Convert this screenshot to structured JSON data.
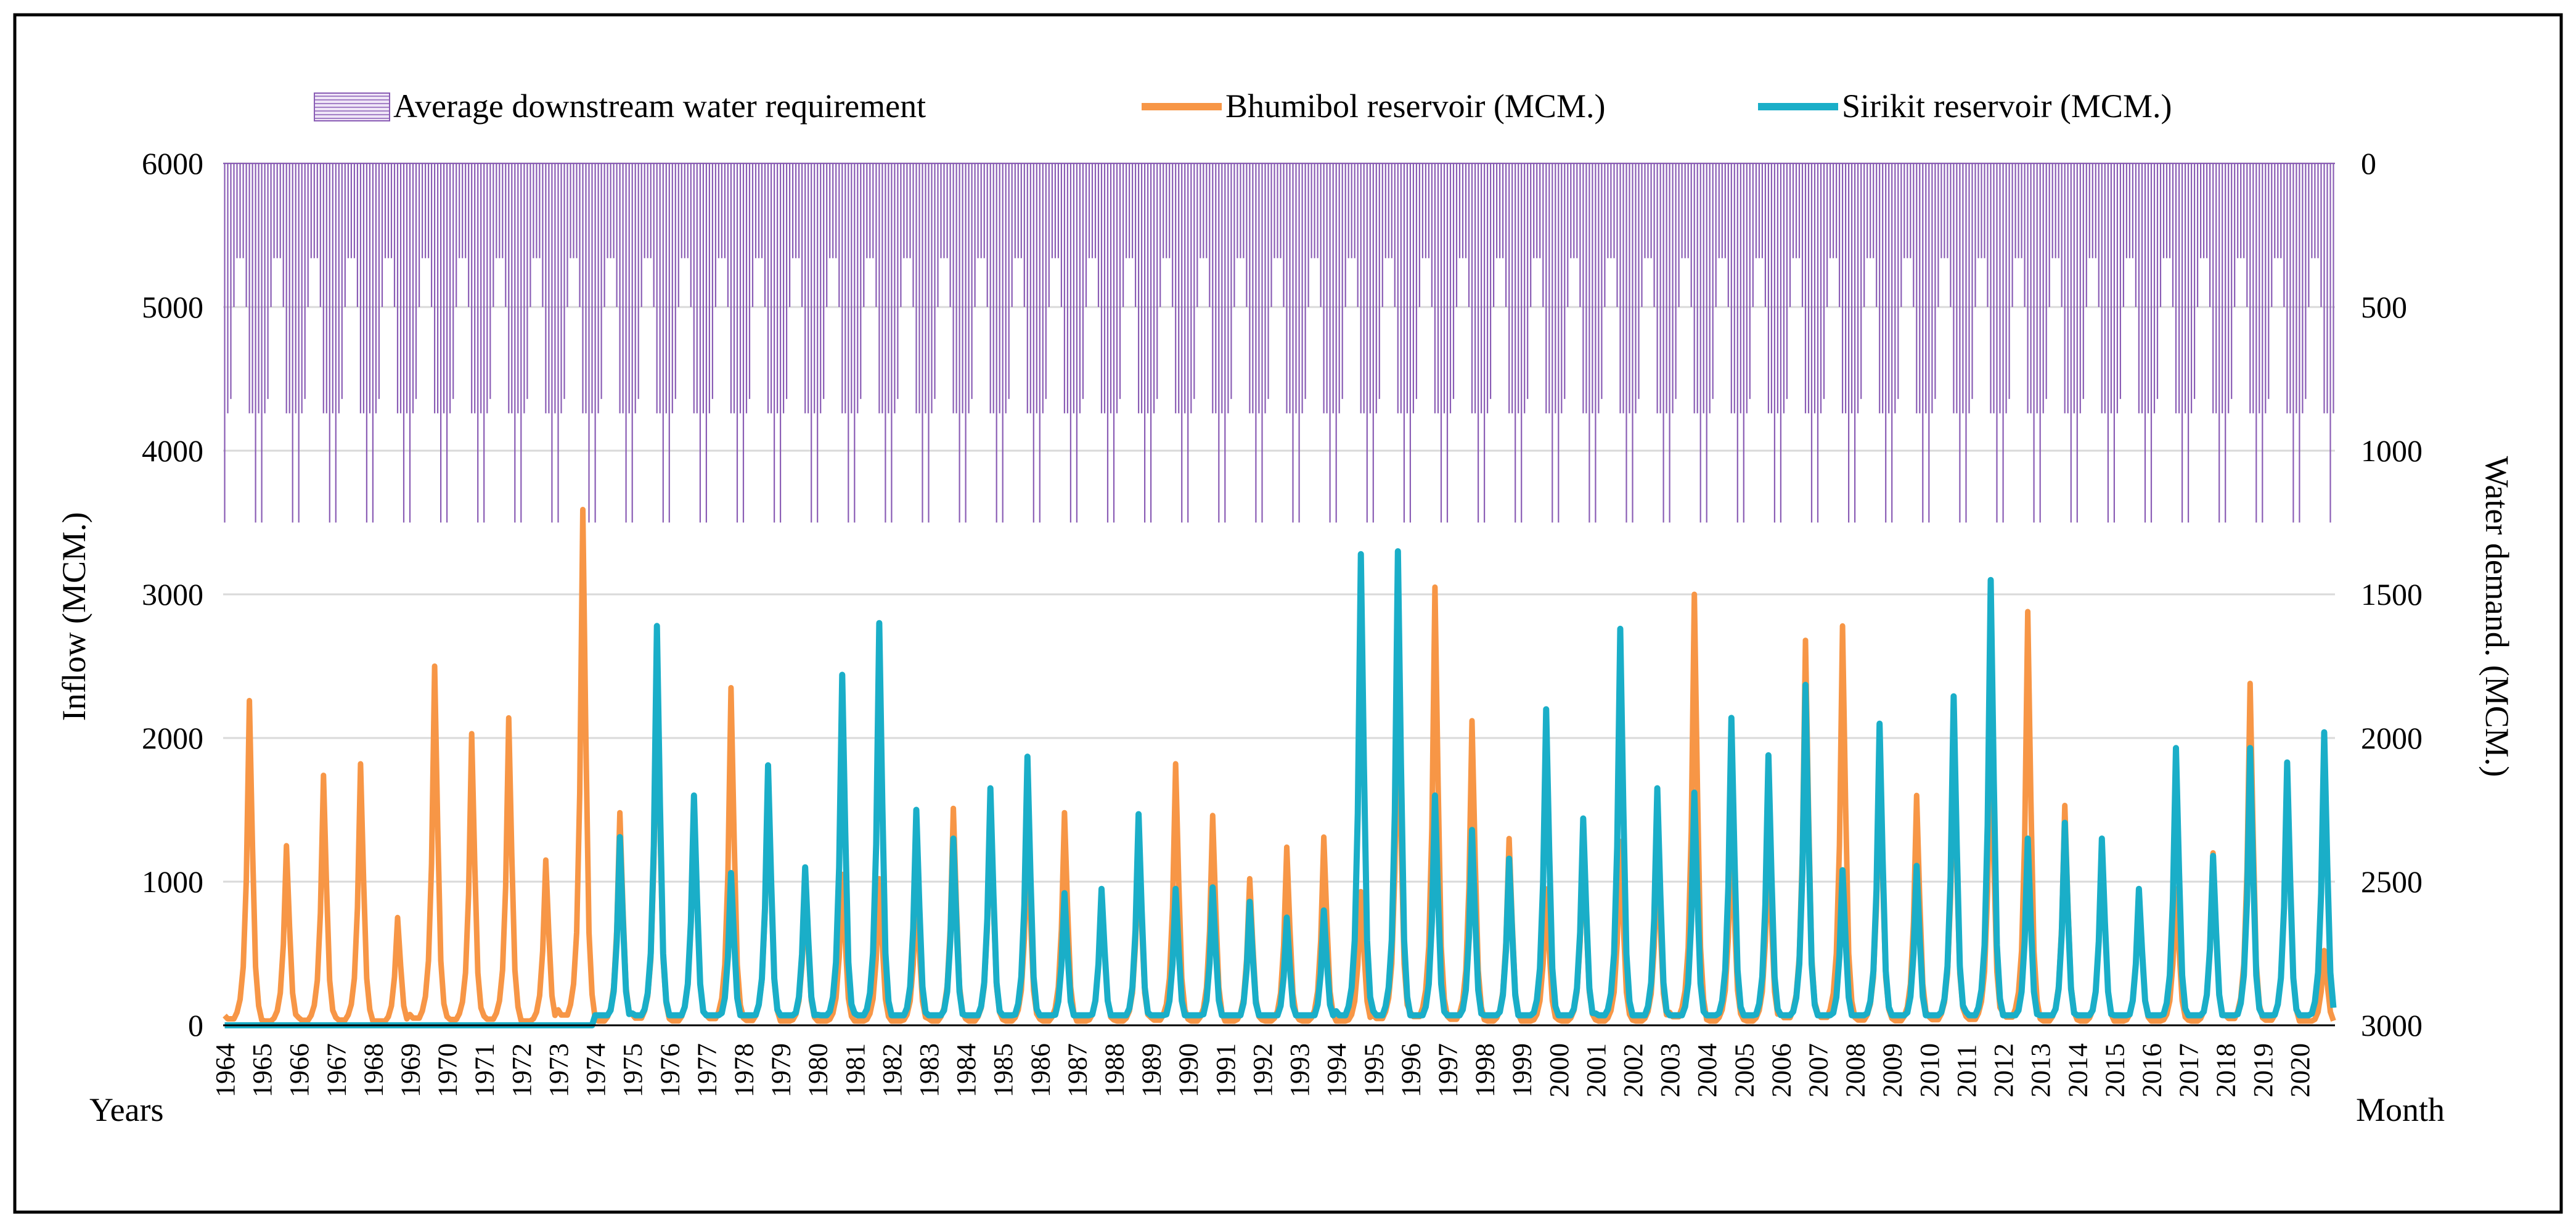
{
  "chart_data": {
    "type": "line",
    "legend": {
      "placement": "top",
      "items": [
        {
          "label": "Average downstream water requirement",
          "kind": "bar"
        },
        {
          "label": "Bhumibol reservoir (MCM.)",
          "kind": "line"
        },
        {
          "label": "Sirikit reservoir (MCM.)",
          "kind": "line"
        }
      ]
    },
    "ylabel_left": "Inflow (MCM.)",
    "ylabel_right": "Water demand. (MCM.)",
    "xlabel_left": "Years",
    "xlabel_right": "Month",
    "ylim_left": [
      0,
      6000
    ],
    "yticks_left": [
      "0",
      "1000",
      "2000",
      "3000",
      "4000",
      "5000",
      "6000"
    ],
    "ylim_right": [
      3000,
      0
    ],
    "yticks_right": [
      "3000",
      "2500",
      "2000",
      "1500",
      "1000",
      "500",
      "0"
    ],
    "grid": true,
    "years": [
      "1964",
      "1965",
      "1966",
      "1967",
      "1968",
      "1969",
      "1970",
      "1971",
      "1972",
      "1973",
      "1974",
      "1975",
      "1976",
      "1977",
      "1978",
      "1979",
      "1980",
      "1981",
      "1982",
      "1983",
      "1984",
      "1985",
      "1986",
      "1987",
      "1988",
      "1989",
      "1990",
      "1991",
      "1992",
      "1993",
      "1994",
      "1995",
      "1996",
      "1997",
      "1998",
      "1999",
      "2000",
      "2001",
      "2002",
      "2003",
      "2004",
      "2005",
      "2006",
      "2007",
      "2008",
      "2009",
      "2010",
      "2011",
      "2012",
      "2013",
      "2014",
      "2015",
      "2016",
      "2017",
      "2018",
      "2019",
      "2020"
    ],
    "water_demand_monthly_pattern": [
      1250,
      870,
      820,
      500,
      330,
      330,
      330,
      500,
      870,
      870,
      1250,
      870
    ],
    "series": [
      {
        "name": "Bhumibol reservoir (MCM.)",
        "color": "#f79646",
        "annual_peaks": [
          2260,
          1250,
          1740,
          1820,
          750,
          2500,
          2030,
          2140,
          1150,
          3590,
          1480,
          2520,
          1550,
          2350,
          1700,
          950,
          1050,
          1020,
          940,
          1510,
          1500,
          1340,
          1480,
          950,
          1250,
          1820,
          1460,
          1020,
          1240,
          1310,
          930,
          2380,
          3050,
          2120,
          1300,
          950,
          1290,
          1280,
          1220,
          3000,
          1350,
          1300,
          2680,
          2780,
          1850,
          1600,
          2000,
          2080,
          2880,
          1530,
          1300,
          950,
          950,
          1200,
          2380,
          1800,
          520
        ]
      },
      {
        "name": "Sirikit reservoir (MCM.)",
        "color": "#1aaec8",
        "annual_peaks": [
          0,
          0,
          0,
          0,
          0,
          0,
          0,
          0,
          0,
          0,
          1310,
          2780,
          1600,
          1060,
          1810,
          1100,
          2440,
          2800,
          1500,
          1300,
          1650,
          1870,
          920,
          950,
          1470,
          950,
          960,
          860,
          750,
          800,
          3280,
          3300,
          1600,
          1360,
          1160,
          2200,
          1440,
          2760,
          1650,
          1620,
          2140,
          1880,
          2370,
          1080,
          2100,
          1110,
          2290,
          3100,
          1300,
          1410,
          1300,
          950,
          1930,
          1180,
          1930,
          1830,
          2040
        ]
      }
    ]
  }
}
